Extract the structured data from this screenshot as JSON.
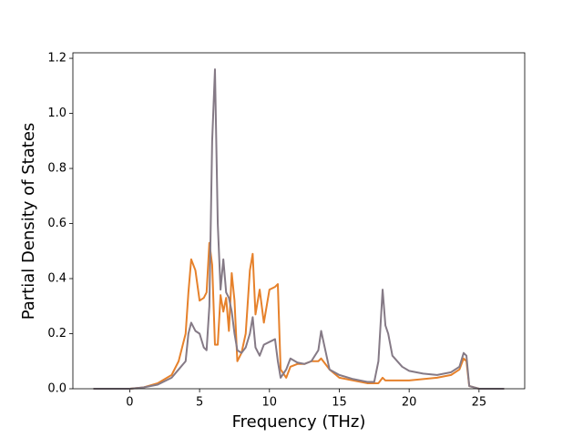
{
  "chart_data": {
    "type": "line",
    "x_label": "Frequency (THz)",
    "y_label": "Partial Density of States",
    "x": [
      -2.6,
      0,
      1,
      2,
      3,
      3.5,
      4,
      4.2,
      4.4,
      4.7,
      5,
      5.3,
      5.5,
      5.7,
      5.9,
      6.1,
      6.3,
      6.5,
      6.7,
      6.9,
      7.1,
      7.3,
      7.5,
      7.7,
      8,
      8.3,
      8.6,
      8.8,
      9,
      9.3,
      9.6,
      10,
      10.4,
      10.6,
      10.8,
      11.2,
      11.5,
      12,
      12.5,
      13,
      13.5,
      13.7,
      14,
      14.3,
      15,
      16,
      17,
      17.5,
      17.8,
      18.1,
      18.3,
      18.5,
      18.8,
      19.5,
      20,
      21,
      22,
      23,
      23.6,
      23.9,
      24.1,
      24.3,
      25,
      26.8
    ],
    "series": [
      {
        "color": "#e6812b",
        "values": [
          0,
          0,
          0.005,
          0.02,
          0.05,
          0.1,
          0.2,
          0.35,
          0.47,
          0.43,
          0.32,
          0.33,
          0.35,
          0.53,
          0.45,
          0.16,
          0.16,
          0.34,
          0.28,
          0.33,
          0.21,
          0.42,
          0.32,
          0.1,
          0.13,
          0.2,
          0.43,
          0.49,
          0.27,
          0.36,
          0.24,
          0.36,
          0.37,
          0.38,
          0.07,
          0.04,
          0.08,
          0.09,
          0.09,
          0.1,
          0.1,
          0.11,
          0.09,
          0.07,
          0.04,
          0.03,
          0.02,
          0.02,
          0.02,
          0.04,
          0.03,
          0.03,
          0.03,
          0.03,
          0.03,
          0.035,
          0.04,
          0.05,
          0.07,
          0.11,
          0.1,
          0.01,
          0,
          0
        ]
      },
      {
        "color": "#857a86",
        "values": [
          0,
          0,
          0.005,
          0.015,
          0.04,
          0.07,
          0.1,
          0.2,
          0.24,
          0.21,
          0.2,
          0.15,
          0.14,
          0.3,
          0.9,
          1.16,
          0.6,
          0.36,
          0.47,
          0.35,
          0.33,
          0.28,
          0.2,
          0.14,
          0.13,
          0.15,
          0.2,
          0.26,
          0.15,
          0.12,
          0.16,
          0.17,
          0.18,
          0.1,
          0.04,
          0.07,
          0.11,
          0.095,
          0.09,
          0.1,
          0.14,
          0.21,
          0.14,
          0.07,
          0.05,
          0.035,
          0.025,
          0.025,
          0.1,
          0.36,
          0.23,
          0.2,
          0.12,
          0.08,
          0.065,
          0.055,
          0.05,
          0.06,
          0.08,
          0.13,
          0.12,
          0.01,
          0,
          0
        ]
      }
    ],
    "xlim": [
      -4.07,
      28.27
    ],
    "ylim": [
      0,
      1.22
    ],
    "xticks": [
      0,
      5,
      10,
      15,
      20,
      25
    ],
    "yticks": [
      {
        "value": 0,
        "label": "0.0"
      },
      {
        "value": 0.2,
        "label": "0.2"
      },
      {
        "value": 0.4,
        "label": "0.4"
      },
      {
        "value": 0.6,
        "label": "0.6"
      },
      {
        "value": 0.8,
        "label": "0.8"
      },
      {
        "value": 1,
        "label": "1.0"
      },
      {
        "value": 1.2,
        "label": "1.2"
      }
    ]
  }
}
